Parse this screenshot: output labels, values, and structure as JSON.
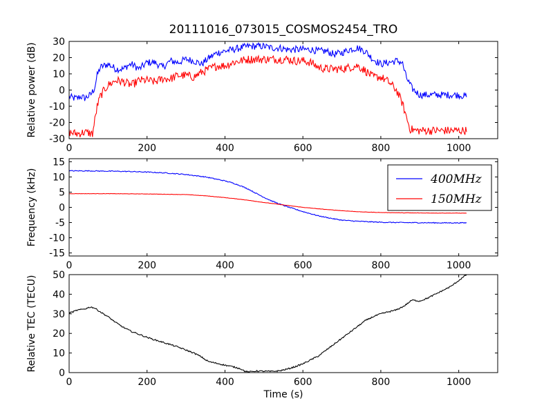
{
  "title": "20111016_073015_COSMOS2454_TRO",
  "chart_data": [
    {
      "id": "power",
      "type": "line",
      "title": "20111016_073015_COSMOS2454_TRO",
      "xlabel": "",
      "ylabel": "Relative power (dB)",
      "xlim": [
        0,
        1100
      ],
      "ylim": [
        -30,
        30
      ],
      "xticks": [
        0,
        200,
        400,
        600,
        800,
        1000
      ],
      "yticks": [
        -30,
        -20,
        -10,
        0,
        10,
        20,
        30
      ],
      "grid": false,
      "series": [
        {
          "color": "#0000ff",
          "noise": 2.2,
          "points": [
            [
              0,
              -4
            ],
            [
              10,
              -5
            ],
            [
              20,
              -5
            ],
            [
              30,
              -4
            ],
            [
              40,
              -5
            ],
            [
              55,
              -3
            ],
            [
              65,
              1
            ],
            [
              72,
              9
            ],
            [
              80,
              14
            ],
            [
              100,
              16
            ],
            [
              120,
              13
            ],
            [
              140,
              13
            ],
            [
              150,
              15
            ],
            [
              160,
              16
            ],
            [
              180,
              13
            ],
            [
              200,
              17
            ],
            [
              220,
              17
            ],
            [
              240,
              14
            ],
            [
              260,
              18
            ],
            [
              280,
              17
            ],
            [
              300,
              19
            ],
            [
              320,
              18
            ],
            [
              340,
              16
            ],
            [
              360,
              20
            ],
            [
              380,
              23
            ],
            [
              400,
              24
            ],
            [
              420,
              25
            ],
            [
              440,
              26
            ],
            [
              460,
              27
            ],
            [
              480,
              27
            ],
            [
              500,
              27
            ],
            [
              520,
              26
            ],
            [
              540,
              26
            ],
            [
              560,
              25
            ],
            [
              580,
              25
            ],
            [
              600,
              25
            ],
            [
              620,
              25
            ],
            [
              640,
              24
            ],
            [
              660,
              24
            ],
            [
              680,
              22
            ],
            [
              700,
              23
            ],
            [
              720,
              25
            ],
            [
              740,
              26
            ],
            [
              760,
              24
            ],
            [
              780,
              19
            ],
            [
              800,
              16
            ],
            [
              820,
              17
            ],
            [
              840,
              18
            ],
            [
              855,
              17
            ],
            [
              865,
              8
            ],
            [
              880,
              1
            ],
            [
              900,
              -3
            ],
            [
              950,
              -3
            ],
            [
              1000,
              -3
            ],
            [
              1020,
              -4
            ]
          ]
        },
        {
          "color": "#ff0000",
          "noise": 2.6,
          "points": [
            [
              0,
              -26
            ],
            [
              20,
              -27
            ],
            [
              40,
              -26
            ],
            [
              60,
              -27
            ],
            [
              65,
              -20
            ],
            [
              72,
              -10
            ],
            [
              80,
              -4
            ],
            [
              90,
              0
            ],
            [
              100,
              3
            ],
            [
              120,
              6
            ],
            [
              140,
              5
            ],
            [
              160,
              3
            ],
            [
              180,
              6
            ],
            [
              200,
              6
            ],
            [
              220,
              5
            ],
            [
              240,
              7
            ],
            [
              260,
              7
            ],
            [
              280,
              9
            ],
            [
              300,
              9
            ],
            [
              320,
              8
            ],
            [
              340,
              11
            ],
            [
              360,
              13
            ],
            [
              380,
              15
            ],
            [
              400,
              15
            ],
            [
              420,
              17
            ],
            [
              440,
              18
            ],
            [
              460,
              19
            ],
            [
              480,
              19
            ],
            [
              500,
              19
            ],
            [
              520,
              19
            ],
            [
              540,
              19
            ],
            [
              560,
              19
            ],
            [
              580,
              18
            ],
            [
              600,
              18
            ],
            [
              620,
              17
            ],
            [
              640,
              14
            ],
            [
              660,
              13
            ],
            [
              680,
              13
            ],
            [
              700,
              13
            ],
            [
              720,
              14
            ],
            [
              740,
              15
            ],
            [
              760,
              12
            ],
            [
              780,
              8
            ],
            [
              800,
              8
            ],
            [
              820,
              5
            ],
            [
              840,
              0
            ],
            [
              855,
              -8
            ],
            [
              865,
              -16
            ],
            [
              875,
              -24
            ],
            [
              890,
              -25
            ],
            [
              950,
              -25
            ],
            [
              1000,
              -25
            ],
            [
              1020,
              -25
            ]
          ]
        }
      ]
    },
    {
      "id": "frequency",
      "type": "line",
      "xlabel": "",
      "ylabel": "Frequency (kHz)",
      "xlim": [
        0,
        1100
      ],
      "ylim": [
        -16,
        16
      ],
      "xticks": [
        0,
        200,
        400,
        600,
        800,
        1000
      ],
      "yticks": [
        -15,
        -10,
        -5,
        0,
        5,
        10,
        15
      ],
      "grid": false,
      "legend": {
        "placement": "top-right",
        "entries": [
          "400MHz",
          "150MHz"
        ]
      },
      "series": [
        {
          "name": "400MHz",
          "color": "#0000ff",
          "noise": 0.15,
          "points": [
            [
              0,
              12.0
            ],
            [
              50,
              12.0
            ],
            [
              100,
              11.9
            ],
            [
              150,
              11.8
            ],
            [
              200,
              11.6
            ],
            [
              250,
              11.3
            ],
            [
              300,
              10.8
            ],
            [
              350,
              10.0
            ],
            [
              400,
              8.7
            ],
            [
              420,
              8.0
            ],
            [
              440,
              7.1
            ],
            [
              460,
              6.0
            ],
            [
              480,
              4.6
            ],
            [
              500,
              3.3
            ],
            [
              520,
              2.1
            ],
            [
              540,
              1.1
            ],
            [
              560,
              0.2
            ],
            [
              580,
              -0.6
            ],
            [
              600,
              -1.4
            ],
            [
              620,
              -2.1
            ],
            [
              640,
              -2.8
            ],
            [
              660,
              -3.3
            ],
            [
              680,
              -3.8
            ],
            [
              700,
              -4.2
            ],
            [
              730,
              -4.5
            ],
            [
              760,
              -4.7
            ],
            [
              800,
              -4.9
            ],
            [
              850,
              -5.0
            ],
            [
              900,
              -5.05
            ],
            [
              950,
              -5.1
            ],
            [
              1020,
              -5.1
            ]
          ]
        },
        {
          "name": "150MHz",
          "color": "#ff0000",
          "noise": 0.05,
          "points": [
            [
              0,
              4.5
            ],
            [
              100,
              4.5
            ],
            [
              200,
              4.4
            ],
            [
              300,
              4.2
            ],
            [
              350,
              3.8
            ],
            [
              400,
              3.2
            ],
            [
              450,
              2.5
            ],
            [
              500,
              1.6
            ],
            [
              550,
              0.8
            ],
            [
              600,
              0.0
            ],
            [
              650,
              -0.6
            ],
            [
              700,
              -1.1
            ],
            [
              750,
              -1.5
            ],
            [
              800,
              -1.7
            ],
            [
              850,
              -1.8
            ],
            [
              900,
              -1.85
            ],
            [
              1020,
              -1.9
            ]
          ]
        }
      ]
    },
    {
      "id": "tec",
      "type": "line",
      "xlabel": "Time (s)",
      "ylabel": "Relative TEC (TECU)",
      "xlim": [
        0,
        1100
      ],
      "ylim": [
        0,
        50
      ],
      "xticks": [
        0,
        200,
        400,
        600,
        800,
        1000
      ],
      "yticks": [
        0,
        10,
        20,
        30,
        40,
        50
      ],
      "grid": false,
      "series": [
        {
          "color": "#000000",
          "noise": 0.35,
          "points": [
            [
              0,
              30.5
            ],
            [
              10,
              31
            ],
            [
              20,
              31.8
            ],
            [
              40,
              32.5
            ],
            [
              55,
              33.5
            ],
            [
              65,
              33
            ],
            [
              80,
              31
            ],
            [
              100,
              28.5
            ],
            [
              120,
              25.5
            ],
            [
              140,
              23
            ],
            [
              160,
              21
            ],
            [
              180,
              19.5
            ],
            [
              200,
              18
            ],
            [
              220,
              16.7
            ],
            [
              240,
              15.5
            ],
            [
              260,
              14.3
            ],
            [
              280,
              13
            ],
            [
              300,
              11.5
            ],
            [
              320,
              10
            ],
            [
              340,
              8
            ],
            [
              350,
              6.5
            ],
            [
              360,
              5.5
            ],
            [
              380,
              4.7
            ],
            [
              400,
              3.8
            ],
            [
              420,
              3.0
            ],
            [
              440,
              2.0
            ],
            [
              450,
              0.8
            ],
            [
              460,
              0.3
            ],
            [
              480,
              0.8
            ],
            [
              500,
              0.7
            ],
            [
              520,
              0.6
            ],
            [
              540,
              0.9
            ],
            [
              560,
              1.8
            ],
            [
              580,
              3.0
            ],
            [
              600,
              4.5
            ],
            [
              620,
              6.5
            ],
            [
              640,
              8.5
            ],
            [
              660,
              11.5
            ],
            [
              680,
              14.5
            ],
            [
              700,
              17.5
            ],
            [
              720,
              20.5
            ],
            [
              740,
              23.5
            ],
            [
              760,
              26.5
            ],
            [
              780,
              28.5
            ],
            [
              800,
              30
            ],
            [
              820,
              31
            ],
            [
              840,
              32
            ],
            [
              860,
              34
            ],
            [
              880,
              37
            ],
            [
              900,
              36.5
            ],
            [
              920,
              38
            ],
            [
              940,
              40
            ],
            [
              960,
              42
            ],
            [
              980,
              44
            ],
            [
              1000,
              47
            ],
            [
              1020,
              50
            ]
          ]
        }
      ]
    }
  ]
}
